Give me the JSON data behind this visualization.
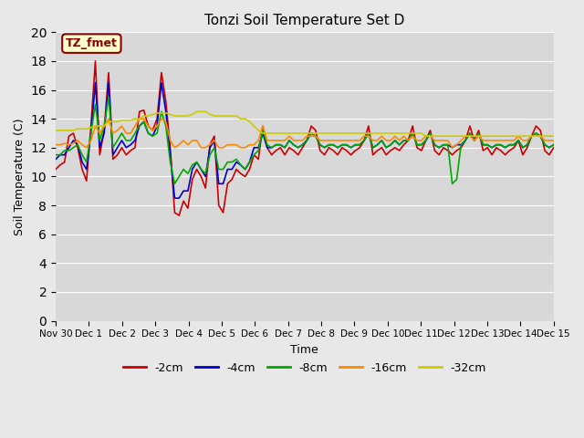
{
  "title": "Tonzi Soil Temperature Set D",
  "xlabel": "Time",
  "ylabel": "Soil Temperature (C)",
  "ylim": [
    0,
    20
  ],
  "background_color": "#e8e8e8",
  "plot_bg_color": "#d8d8d8",
  "annotation_label": "TZ_fmet",
  "annotation_box_color": "#ffffcc",
  "annotation_box_edge": "#8b0000",
  "legend_labels": [
    "-2cm",
    "-4cm",
    "-8cm",
    "-16cm",
    "-32cm"
  ],
  "line_colors": [
    "#cc0000",
    "#0000cc",
    "#00aa00",
    "#ff8800",
    "#cccc00"
  ],
  "x_tick_labels": [
    "Nov 30",
    "Dec 1",
    "Dec 2",
    "Dec 3",
    "Dec 4",
    "Dec 5",
    "Dec 6",
    "Dec 7",
    "Dec 8",
    "Dec 9",
    "Dec 10",
    "Dec 11",
    "Dec 12",
    "Dec 13",
    "Dec 14",
    "Dec 15"
  ],
  "series_2cm": [
    10.5,
    10.8,
    11.0,
    12.8,
    13.0,
    12.0,
    10.5,
    9.7,
    13.5,
    18.0,
    11.5,
    13.2,
    17.2,
    11.2,
    11.5,
    12.0,
    11.5,
    11.8,
    12.0,
    14.5,
    14.6,
    13.5,
    13.2,
    14.0,
    17.2,
    15.2,
    12.0,
    7.5,
    7.3,
    8.3,
    7.8,
    9.8,
    10.5,
    10.0,
    9.2,
    12.2,
    12.8,
    8.0,
    7.5,
    9.5,
    9.8,
    10.5,
    10.2,
    10.0,
    10.5,
    11.5,
    11.2,
    13.5,
    12.0,
    11.5,
    11.8,
    12.0,
    11.5,
    12.0,
    11.8,
    11.5,
    12.0,
    12.5,
    13.5,
    13.2,
    11.8,
    11.5,
    12.0,
    11.8,
    11.5,
    12.0,
    11.8,
    11.5,
    11.8,
    12.0,
    12.5,
    13.5,
    11.5,
    11.8,
    12.0,
    11.5,
    11.8,
    12.0,
    11.8,
    12.2,
    12.5,
    13.5,
    12.0,
    11.8,
    12.5,
    13.2,
    11.8,
    11.5,
    12.0,
    11.8,
    11.5,
    11.8,
    12.0,
    12.5,
    13.5,
    12.5,
    13.2,
    11.8,
    12.0,
    11.5,
    12.0,
    11.8,
    11.5,
    11.8,
    12.0,
    12.5,
    11.5,
    12.0,
    12.8,
    13.5,
    13.2,
    11.8,
    11.5,
    12.0
  ],
  "series_4cm": [
    11.2,
    11.5,
    11.5,
    12.0,
    12.5,
    12.2,
    11.0,
    10.5,
    13.0,
    16.5,
    12.0,
    13.0,
    16.5,
    11.5,
    12.0,
    12.5,
    12.0,
    12.2,
    12.5,
    13.5,
    13.8,
    13.0,
    12.8,
    13.5,
    16.5,
    14.5,
    11.5,
    8.5,
    8.5,
    9.0,
    9.0,
    10.5,
    11.0,
    10.5,
    10.0,
    12.0,
    12.5,
    9.5,
    9.5,
    10.5,
    10.5,
    11.0,
    10.8,
    10.5,
    11.0,
    12.0,
    12.0,
    13.0,
    12.0,
    12.0,
    12.2,
    12.2,
    12.0,
    12.5,
    12.2,
    12.0,
    12.2,
    12.5,
    13.0,
    12.8,
    12.2,
    12.0,
    12.2,
    12.2,
    12.0,
    12.2,
    12.2,
    12.0,
    12.2,
    12.2,
    12.5,
    13.0,
    12.0,
    12.2,
    12.5,
    12.0,
    12.2,
    12.5,
    12.2,
    12.5,
    12.5,
    13.0,
    12.2,
    12.2,
    12.5,
    13.0,
    12.2,
    12.0,
    12.2,
    12.2,
    12.0,
    12.2,
    12.2,
    12.5,
    13.0,
    12.5,
    13.0,
    12.2,
    12.2,
    12.0,
    12.2,
    12.2,
    12.0,
    12.2,
    12.2,
    12.5,
    12.0,
    12.2,
    12.8,
    13.0,
    12.8,
    12.2,
    12.0,
    12.2
  ],
  "series_8cm": [
    11.5,
    11.5,
    11.8,
    11.8,
    12.0,
    12.2,
    11.5,
    11.0,
    13.0,
    15.0,
    12.5,
    13.5,
    15.5,
    12.0,
    12.5,
    13.0,
    12.5,
    12.5,
    13.0,
    13.5,
    13.8,
    13.0,
    12.8,
    13.0,
    14.5,
    13.5,
    11.0,
    9.5,
    10.0,
    10.5,
    10.2,
    10.8,
    11.0,
    10.5,
    10.2,
    11.5,
    12.0,
    10.5,
    10.5,
    11.0,
    11.0,
    11.2,
    10.8,
    10.5,
    11.0,
    11.5,
    11.8,
    13.2,
    12.2,
    12.0,
    12.2,
    12.2,
    12.0,
    12.5,
    12.2,
    12.0,
    12.2,
    12.5,
    13.0,
    12.8,
    12.2,
    12.0,
    12.2,
    12.2,
    12.0,
    12.2,
    12.2,
    12.0,
    12.2,
    12.2,
    12.5,
    13.0,
    12.0,
    12.2,
    12.5,
    12.0,
    12.2,
    12.5,
    12.2,
    12.5,
    12.5,
    13.0,
    12.2,
    12.2,
    12.5,
    13.0,
    12.2,
    12.0,
    12.2,
    12.2,
    9.5,
    9.8,
    12.2,
    12.5,
    13.0,
    12.5,
    13.0,
    12.2,
    12.2,
    12.0,
    12.2,
    12.2,
    12.0,
    12.2,
    12.2,
    12.5,
    12.0,
    12.2,
    12.8,
    13.0,
    12.8,
    12.2,
    12.0,
    12.2
  ],
  "series_16cm": [
    12.2,
    12.2,
    12.3,
    12.2,
    12.3,
    12.5,
    12.2,
    12.0,
    12.5,
    13.5,
    13.0,
    13.5,
    14.0,
    13.0,
    13.2,
    13.5,
    13.0,
    13.0,
    13.5,
    14.0,
    14.0,
    13.5,
    13.2,
    13.5,
    14.0,
    13.8,
    12.5,
    12.0,
    12.2,
    12.5,
    12.2,
    12.5,
    12.5,
    12.0,
    12.0,
    12.2,
    12.5,
    12.0,
    12.0,
    12.2,
    12.2,
    12.2,
    12.0,
    12.0,
    12.2,
    12.2,
    12.5,
    13.5,
    12.5,
    12.5,
    12.5,
    12.5,
    12.5,
    12.8,
    12.5,
    12.5,
    12.5,
    12.8,
    12.8,
    12.8,
    12.5,
    12.5,
    12.5,
    12.5,
    12.5,
    12.5,
    12.5,
    12.5,
    12.5,
    12.5,
    12.8,
    12.8,
    12.5,
    12.5,
    12.8,
    12.5,
    12.5,
    12.8,
    12.5,
    12.8,
    12.5,
    12.8,
    12.5,
    12.5,
    12.8,
    12.8,
    12.5,
    12.5,
    12.5,
    12.5,
    12.0,
    12.2,
    12.5,
    12.8,
    12.8,
    12.5,
    12.8,
    12.5,
    12.5,
    12.5,
    12.5,
    12.5,
    12.5,
    12.5,
    12.5,
    12.8,
    12.5,
    12.5,
    12.8,
    12.8,
    12.8,
    12.5,
    12.5,
    12.5
  ],
  "series_32cm": [
    13.2,
    13.2,
    13.2,
    13.2,
    13.2,
    13.3,
    13.3,
    13.3,
    13.4,
    13.5,
    13.5,
    13.5,
    13.8,
    13.8,
    13.8,
    13.9,
    13.9,
    13.9,
    14.0,
    14.0,
    14.2,
    14.2,
    14.3,
    14.4,
    14.4,
    14.4,
    14.3,
    14.2,
    14.2,
    14.2,
    14.2,
    14.3,
    14.5,
    14.5,
    14.5,
    14.3,
    14.2,
    14.2,
    14.2,
    14.2,
    14.2,
    14.2,
    14.0,
    14.0,
    13.8,
    13.5,
    13.2,
    13.0,
    13.0,
    13.0,
    13.0,
    13.0,
    13.0,
    13.0,
    13.0,
    13.0,
    13.0,
    13.0,
    13.0,
    13.0,
    13.0,
    13.0,
    13.0,
    13.0,
    13.0,
    13.0,
    13.0,
    13.0,
    13.0,
    13.0,
    13.0,
    13.0,
    13.0,
    13.0,
    13.0,
    13.0,
    13.0,
    13.0,
    13.0,
    13.0,
    13.0,
    13.0,
    13.0,
    13.0,
    12.8,
    12.8,
    12.8,
    12.8,
    12.8,
    12.8,
    12.8,
    12.8,
    12.8,
    12.8,
    12.8,
    12.8,
    12.8,
    12.8,
    12.8,
    12.8,
    12.8,
    12.8,
    12.8,
    12.8,
    12.8,
    12.8,
    12.8,
    12.8,
    12.8,
    12.8,
    12.8,
    12.8,
    12.8,
    12.8
  ]
}
